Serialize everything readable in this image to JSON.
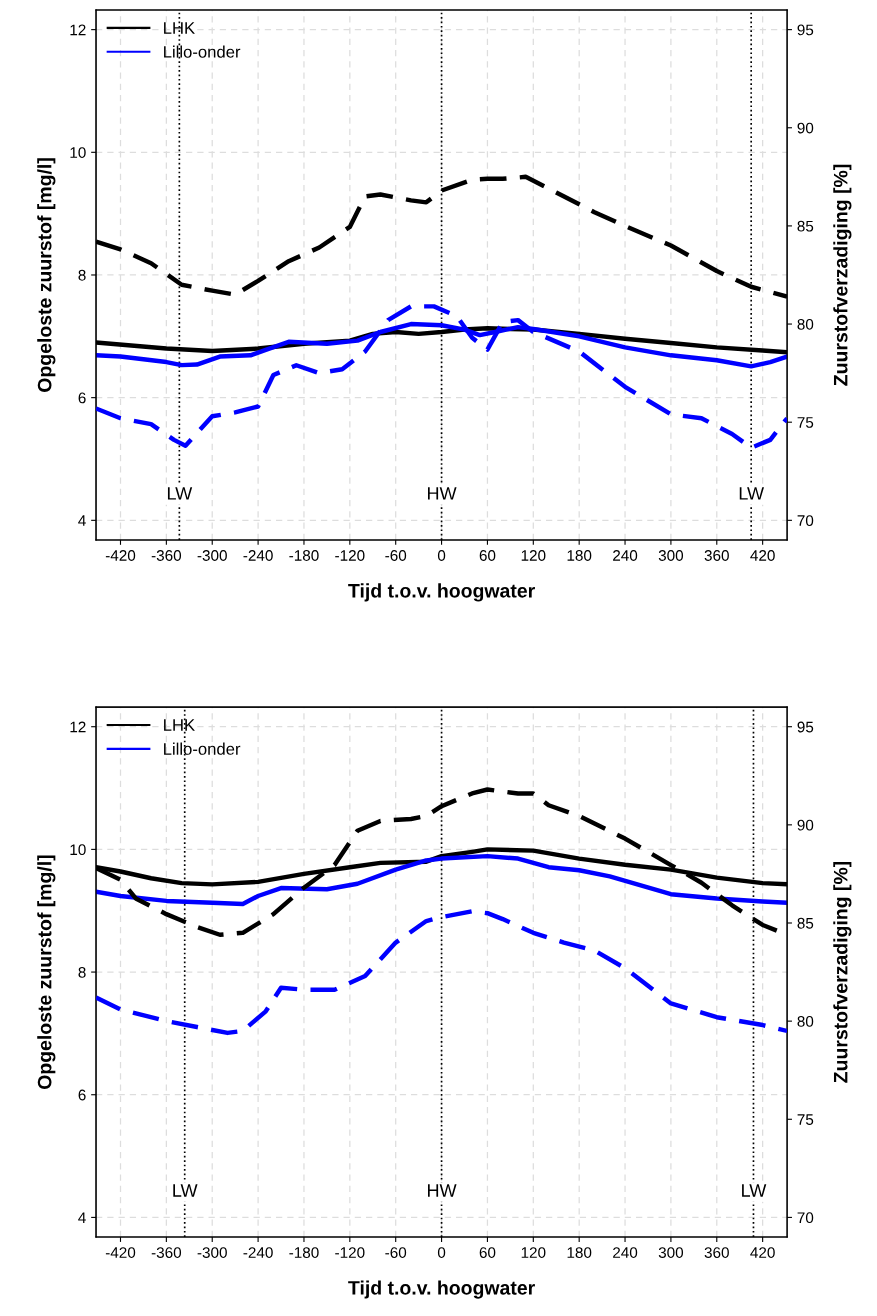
{
  "chart_data": [
    {
      "type": "line",
      "xlabel": "Tijd t.o.v. hoogwater",
      "ylabel": "Opgeloste zuurstof [mg/l]",
      "y2label": "Zuurstofverzadiging [%]",
      "xlim": [
        -452,
        452
      ],
      "xticks": [
        -420,
        -360,
        -300,
        -240,
        -180,
        -120,
        -60,
        0,
        60,
        120,
        180,
        240,
        300,
        360,
        420
      ],
      "ylim": [
        3.68,
        12.32
      ],
      "yticks": [
        4,
        6,
        8,
        10,
        12
      ],
      "y2lim": [
        69,
        96
      ],
      "y2ticks": [
        70,
        75,
        80,
        85,
        90,
        95
      ],
      "grid": true,
      "legend": "top left",
      "ref_lines": [
        {
          "axis": "x",
          "value": -343,
          "label": "LW",
          "color": "#000000",
          "line_style": "dotted"
        },
        {
          "axis": "x",
          "value": 0,
          "label": "HW",
          "color": "#000000",
          "line_style": "dotted"
        },
        {
          "axis": "x",
          "value": 405,
          "label": "LW",
          "color": "#000000",
          "line_style": "dotted"
        }
      ],
      "series": [
        {
          "name": "LHK",
          "color": "#000000",
          "line_style": "solid",
          "x": [
            -452,
            -360,
            -300,
            -240,
            -180,
            -120,
            -90,
            -60,
            -30,
            0,
            30,
            60,
            90,
            120,
            180,
            240,
            300,
            360,
            420,
            452
          ],
          "values": [
            6.9,
            6.8,
            6.76,
            6.8,
            6.88,
            6.93,
            7.04,
            7.07,
            7.04,
            7.07,
            7.11,
            7.13,
            7.12,
            7.11,
            7.04,
            6.96,
            6.89,
            6.82,
            6.77,
            6.74
          ]
        },
        {
          "name": "Lillo-onder",
          "color": "#0000ff",
          "line_style": "solid",
          "x": [
            -452,
            -420,
            -360,
            -340,
            -320,
            -290,
            -250,
            -230,
            -200,
            -150,
            -110,
            -80,
            -40,
            0,
            30,
            50,
            70,
            100,
            120,
            180,
            240,
            300,
            360,
            405,
            430,
            452
          ],
          "values": [
            6.69,
            6.67,
            6.58,
            6.53,
            6.54,
            6.67,
            6.69,
            6.78,
            6.91,
            6.88,
            6.93,
            7.07,
            7.2,
            7.18,
            7.11,
            7.02,
            7.07,
            7.15,
            7.12,
            7.0,
            6.82,
            6.69,
            6.61,
            6.51,
            6.58,
            6.67
          ]
        },
        {
          "color": "#000000",
          "line_style": "dashed",
          "axis": "y2",
          "x": [
            -452,
            -420,
            -380,
            -340,
            -300,
            -270,
            -240,
            -200,
            -160,
            -120,
            -100,
            -80,
            -40,
            -20,
            0,
            40,
            60,
            80,
            110,
            150,
            200,
            240,
            300,
            360,
            405,
            452
          ],
          "values": [
            84.2,
            83.8,
            83.1,
            82.0,
            81.7,
            81.5,
            82.2,
            83.2,
            83.9,
            84.95,
            86.5,
            86.6,
            86.3,
            86.2,
            86.8,
            87.35,
            87.4,
            87.4,
            87.5,
            86.7,
            85.7,
            85.0,
            84.0,
            82.7,
            81.9,
            81.4
          ]
        },
        {
          "color": "#0000ff",
          "line_style": "dashed",
          "axis": "y2",
          "x": [
            -452,
            -420,
            -380,
            -350,
            -335,
            -300,
            -270,
            -240,
            -220,
            -190,
            -160,
            -130,
            -100,
            -70,
            -40,
            -10,
            20,
            40,
            60,
            80,
            100,
            120,
            180,
            240,
            300,
            340,
            380,
            405,
            430,
            452
          ],
          "values": [
            75.7,
            75.2,
            74.9,
            74.1,
            73.8,
            75.3,
            75.5,
            75.8,
            77.4,
            77.9,
            77.5,
            77.7,
            78.6,
            80.2,
            80.9,
            80.9,
            80.4,
            79.3,
            78.7,
            80.1,
            80.2,
            79.6,
            78.6,
            76.8,
            75.4,
            75.2,
            74.4,
            73.7,
            74.1,
            75.2
          ]
        }
      ]
    },
    {
      "type": "line",
      "xlabel": "Tijd t.o.v. hoogwater",
      "ylabel": "Opgeloste zuurstof [mg/l]",
      "y2label": "Zuurstofverzadiging [%]",
      "xlim": [
        -452,
        452
      ],
      "xticks": [
        -420,
        -360,
        -300,
        -240,
        -180,
        -120,
        -60,
        0,
        60,
        120,
        180,
        240,
        300,
        360,
        420
      ],
      "ylim": [
        3.68,
        12.32
      ],
      "yticks": [
        4,
        6,
        8,
        10,
        12
      ],
      "y2lim": [
        69,
        96
      ],
      "y2ticks": [
        70,
        75,
        80,
        85,
        90,
        95
      ],
      "grid": true,
      "legend": "top left",
      "ref_lines": [
        {
          "axis": "x",
          "value": -336,
          "label": "LW",
          "color": "#000000",
          "line_style": "dotted"
        },
        {
          "axis": "x",
          "value": 0,
          "label": "HW",
          "color": "#000000",
          "line_style": "dotted"
        },
        {
          "axis": "x",
          "value": 408,
          "label": "LW",
          "color": "#000000",
          "line_style": "dotted"
        }
      ],
      "series": [
        {
          "name": "LHK",
          "color": "#000000",
          "line_style": "solid",
          "x": [
            -452,
            -420,
            -380,
            -340,
            -300,
            -240,
            -180,
            -120,
            -80,
            -20,
            0,
            40,
            60,
            120,
            180,
            240,
            300,
            360,
            420,
            452
          ],
          "values": [
            9.71,
            9.64,
            9.53,
            9.45,
            9.43,
            9.47,
            9.6,
            9.71,
            9.78,
            9.8,
            9.89,
            9.96,
            10.0,
            9.98,
            9.85,
            9.75,
            9.67,
            9.54,
            9.45,
            9.43
          ]
        },
        {
          "name": "Lillo-onder",
          "color": "#0000ff",
          "line_style": "solid",
          "x": [
            -452,
            -420,
            -360,
            -300,
            -260,
            -240,
            -210,
            -150,
            -110,
            -60,
            -20,
            0,
            60,
            100,
            140,
            180,
            220,
            300,
            360,
            420,
            452
          ],
          "values": [
            9.31,
            9.24,
            9.16,
            9.13,
            9.11,
            9.24,
            9.37,
            9.35,
            9.44,
            9.67,
            9.82,
            9.85,
            9.89,
            9.85,
            9.71,
            9.66,
            9.56,
            9.27,
            9.2,
            9.15,
            9.13
          ]
        },
        {
          "color": "#000000",
          "line_style": "dashed",
          "axis": "y2",
          "x": [
            -452,
            -420,
            -400,
            -360,
            -320,
            -290,
            -260,
            -220,
            -180,
            -140,
            -110,
            -80,
            -40,
            -20,
            0,
            40,
            60,
            100,
            120,
            140,
            180,
            240,
            300,
            340,
            380,
            420,
            452
          ],
          "values": [
            87.8,
            87.2,
            86.25,
            85.45,
            84.8,
            84.4,
            84.5,
            85.45,
            86.8,
            87.95,
            89.7,
            90.2,
            90.3,
            90.45,
            90.95,
            91.6,
            91.8,
            91.6,
            91.6,
            91.0,
            90.45,
            89.3,
            87.95,
            87.05,
            85.9,
            84.9,
            84.4
          ]
        },
        {
          "color": "#0000ff",
          "line_style": "dashed",
          "axis": "y2",
          "x": [
            -452,
            -420,
            -360,
            -320,
            -280,
            -260,
            -230,
            -210,
            -180,
            -140,
            -100,
            -60,
            -20,
            0,
            40,
            60,
            80,
            120,
            160,
            200,
            240,
            300,
            360,
            420,
            452
          ],
          "values": [
            81.2,
            80.6,
            80.0,
            79.7,
            79.4,
            79.5,
            80.5,
            81.7,
            81.6,
            81.6,
            82.3,
            84.0,
            85.1,
            85.3,
            85.6,
            85.5,
            85.2,
            84.5,
            84.0,
            83.6,
            82.7,
            80.9,
            80.2,
            79.8,
            79.5
          ]
        }
      ]
    }
  ]
}
